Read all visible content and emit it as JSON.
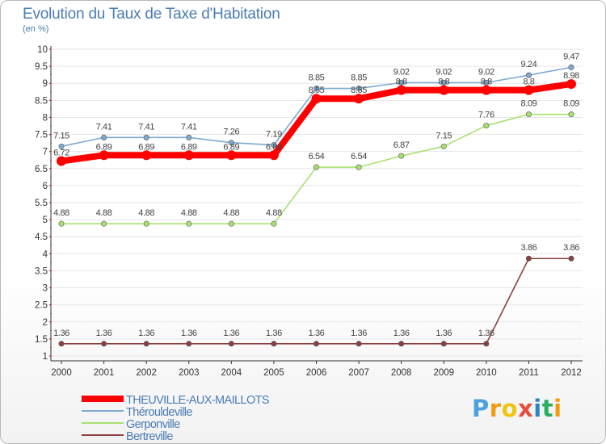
{
  "title": "Evolution du Taux de Taxe d'Habitation",
  "subtitle": "(en %)",
  "brand": {
    "letters": [
      "P",
      "r",
      "o",
      "x",
      "i",
      "t",
      "i"
    ],
    "colors": [
      "#4aa3df",
      "#f39c12",
      "#f1c40f",
      "#e74c3c",
      "#2e86c1",
      "#27ae60",
      "#f39c12"
    ]
  },
  "chart_data": {
    "type": "line",
    "title": "Evolution du Taux de Taxe d'Habitation",
    "ylabel": "(en %)",
    "xlabel": "",
    "ylim": [
      1,
      10
    ],
    "yticks": [
      "1",
      "1.5",
      "2",
      "2.5",
      "3",
      "3.5",
      "4",
      "4.5",
      "5",
      "5.5",
      "6",
      "6.5",
      "7",
      "7.5",
      "8",
      "8.5",
      "9",
      "9.5",
      "10"
    ],
    "categories": [
      "2000",
      "2001",
      "2002",
      "2003",
      "2004",
      "2005",
      "2006",
      "2007",
      "2008",
      "2009",
      "2010",
      "2011",
      "2012"
    ],
    "legend_position": "bottom-left",
    "series": [
      {
        "name": "THEUVILLE-AUX-MAILLOTS",
        "color": "#ff0000",
        "values": [
          6.72,
          6.89,
          6.89,
          6.89,
          6.89,
          6.89,
          8.55,
          8.55,
          8.8,
          8.8,
          8.8,
          8.8,
          8.98
        ],
        "labels": [
          "6.72",
          "6.89",
          "6.89",
          "6.89",
          "6.89",
          "6.89",
          "8.55",
          "8.55",
          "8.8",
          "8.8",
          "8.8",
          "8.8",
          "8.98"
        ]
      },
      {
        "name": "Thérouldeville",
        "color": "#7fa9d0",
        "values": [
          7.15,
          7.41,
          7.41,
          7.41,
          7.26,
          7.19,
          8.85,
          8.85,
          9.02,
          9.02,
          9.02,
          9.24,
          9.47
        ],
        "labels": [
          "7.15",
          "7.41",
          "7.41",
          "7.41",
          "7.26",
          "7.19",
          "8.85",
          "8.85",
          "9.02",
          "9.02",
          "9.02",
          "9.24",
          "9.47"
        ]
      },
      {
        "name": "Gerponville",
        "color": "#a8e070",
        "values": [
          4.88,
          4.88,
          4.88,
          4.88,
          4.88,
          4.88,
          6.54,
          6.54,
          6.87,
          7.15,
          7.76,
          8.09,
          8.09
        ],
        "labels": [
          "4.88",
          "4.88",
          "4.88",
          "4.88",
          "4.88",
          "4.88",
          "6.54",
          "6.54",
          "6.87",
          "7.15",
          "7.76",
          "8.09",
          "8.09"
        ]
      },
      {
        "name": "Bertreville",
        "color": "#8b4040",
        "values": [
          1.36,
          1.36,
          1.36,
          1.36,
          1.36,
          1.36,
          1.36,
          1.36,
          1.36,
          1.36,
          1.36,
          3.86,
          3.86
        ],
        "labels": [
          "1.36",
          "1.36",
          "1.36",
          "1.36",
          "1.36",
          "1.36",
          "1.36",
          "1.36",
          "1.36",
          "1.36",
          "1.36",
          "3.86",
          "3.86"
        ]
      }
    ]
  }
}
